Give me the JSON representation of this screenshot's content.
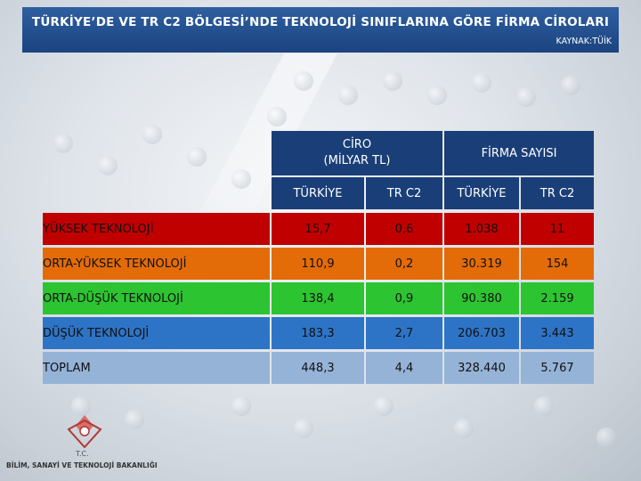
{
  "slide": {
    "title": "TÜRKİYE’DE VE TR C2 BÖLGESİ’NDE TEKNOLOJİ SINIFLARINA GÖRE FİRMA CİROLARI",
    "source": "KAYNAK:TÜİK"
  },
  "table": {
    "group_headers": {
      "ciro": "CİRO\n(MİLYAR TL)",
      "firma": "FİRMA SAYISI"
    },
    "sub_headers": [
      "TÜRKİYE",
      "TR  C2",
      "TÜRKİYE",
      "TR C2"
    ],
    "rows": [
      {
        "label": "YÜKSEK TEKNOLOJİ",
        "ciro_tr": "15,7",
        "ciro_c2": "0,6",
        "firma_tr": "1.038",
        "firma_c2": "11",
        "color": "#c00000"
      },
      {
        "label": "ORTA-YÜKSEK TEKNOLOJİ",
        "ciro_tr": "110,9",
        "ciro_c2": "0,2",
        "firma_tr": "30.319",
        "firma_c2": "154",
        "color": "#e36c09"
      },
      {
        "label": "ORTA-DÜŞÜK TEKNOLOJİ",
        "ciro_tr": "138,4",
        "ciro_c2": "0,9",
        "firma_tr": "90.380",
        "firma_c2": "2.159",
        "color": "#2dc431"
      },
      {
        "label": "DÜŞÜK TEKNOLOJİ",
        "ciro_tr": "183,3",
        "ciro_c2": "2,7",
        "firma_tr": "206.703",
        "firma_c2": "3.443",
        "color": "#2e74c6"
      },
      {
        "label": "TOPLAM",
        "ciro_tr": "448,3",
        "ciro_c2": "4,4",
        "firma_tr": "328.440",
        "firma_c2": "5.767",
        "color": "#95b3d7"
      }
    ]
  },
  "footer": {
    "logo_tc": "T.C.",
    "logo_name": "BİLİM, SANAYİ VE TEKNOLOJİ BAKANLIĞI"
  }
}
